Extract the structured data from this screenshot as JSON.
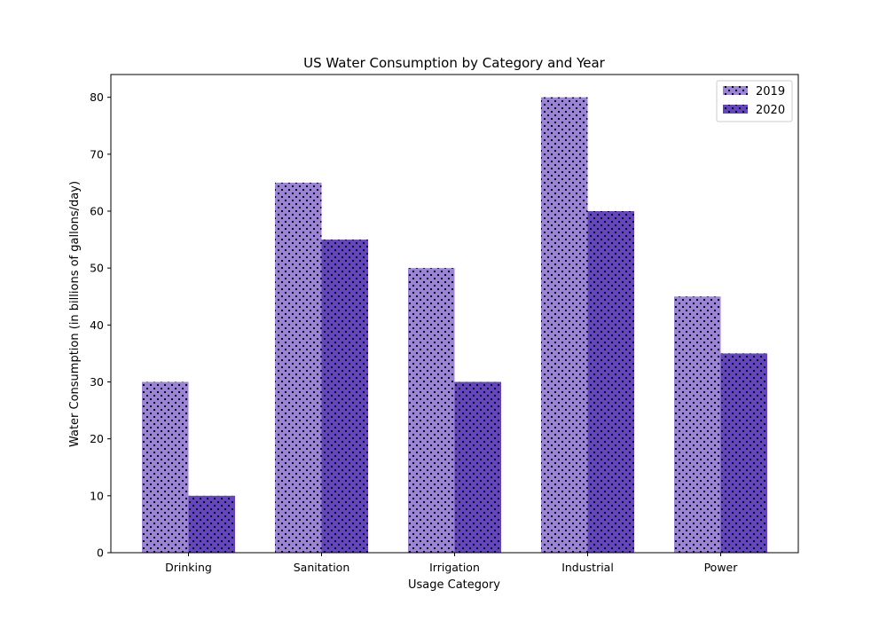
{
  "chart_data": {
    "type": "bar",
    "title": "US Water Consumption by Category and Year",
    "xlabel": "Usage Category",
    "ylabel": "Water Consumption (in billions of gallons/day)",
    "categories": [
      "Drinking",
      "Sanitation",
      "Irrigation",
      "Industrial",
      "Power"
    ],
    "series": [
      {
        "name": "2019",
        "values": [
          30,
          65,
          50,
          80,
          45
        ],
        "color": "#9c84d8"
      },
      {
        "name": "2020",
        "values": [
          10,
          55,
          30,
          60,
          35
        ],
        "color": "#6546c0"
      }
    ],
    "ylim": [
      0,
      84
    ],
    "yticks": [
      0,
      10,
      20,
      30,
      40,
      50,
      60,
      70,
      80
    ],
    "grid": false,
    "legend": "top-right",
    "hatch": "dots"
  }
}
